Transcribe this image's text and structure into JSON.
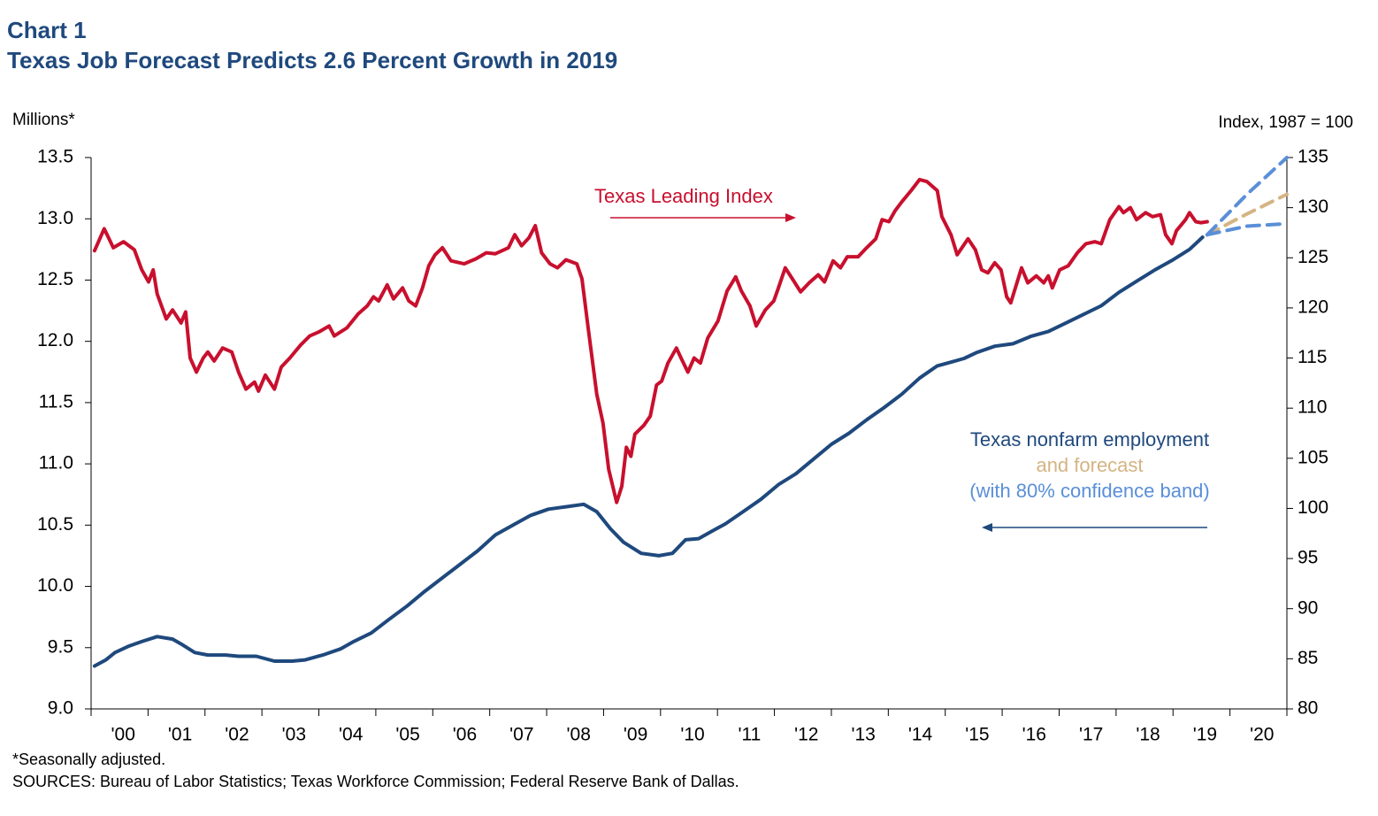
{
  "chart_data": {
    "type": "line",
    "title": "Chart 1",
    "subtitle": "Texas Job Forecast Predicts 2.6 Percent Growth in 2019",
    "y_label": "Millions*",
    "y2_label": "Index, 1987 = 100",
    "footnote": "*Seasonally adjusted.",
    "source": "SOURCES: Bureau of Labor Statistics; Texas Workforce Commission; Federal Reserve Bank of Dallas.",
    "xlim": [
      2000,
      2021
    ],
    "xticks": [
      {
        "value": 2000,
        "label": "'00"
      },
      {
        "value": 2001,
        "label": "'01"
      },
      {
        "value": 2002,
        "label": "'02"
      },
      {
        "value": 2003,
        "label": "'03"
      },
      {
        "value": 2004,
        "label": "'04"
      },
      {
        "value": 2005,
        "label": "'05"
      },
      {
        "value": 2006,
        "label": "'06"
      },
      {
        "value": 2007,
        "label": "'07"
      },
      {
        "value": 2008,
        "label": "'08"
      },
      {
        "value": 2009,
        "label": "'09"
      },
      {
        "value": 2010,
        "label": "'10"
      },
      {
        "value": 2011,
        "label": "'11"
      },
      {
        "value": 2012,
        "label": "'12"
      },
      {
        "value": 2013,
        "label": "'13"
      },
      {
        "value": 2014,
        "label": "'14"
      },
      {
        "value": 2015,
        "label": "'15"
      },
      {
        "value": 2016,
        "label": "'16"
      },
      {
        "value": 2017,
        "label": "'17"
      },
      {
        "value": 2018,
        "label": "'18"
      },
      {
        "value": 2019,
        "label": "'19"
      },
      {
        "value": 2020,
        "label": "'20"
      }
    ],
    "ylim": [
      9,
      13.5
    ],
    "yticks": [
      {
        "value": 9,
        "label": "9.0"
      },
      9.5,
      {
        "value": 10,
        "label": "10.0"
      },
      10.5,
      {
        "value": 11,
        "label": "11.0"
      },
      11.5,
      {
        "value": 12,
        "label": "12.0"
      },
      12.5,
      {
        "value": 13,
        "label": "13.0"
      },
      13.5
    ],
    "y2lim": [
      80,
      135
    ],
    "y2ticks": [
      80,
      85,
      90,
      95,
      100,
      105,
      110,
      115,
      120,
      125,
      130,
      135
    ],
    "series": [
      {
        "name": "Texas Leading Index",
        "color": "#c8102e",
        "axis": "y2",
        "x": [
          2000.06,
          2000.23,
          2000.39,
          2000.57,
          2000.76,
          2000.89,
          2001.01,
          2001.09,
          2001.16,
          2001.32,
          2001.43,
          2001.58,
          2001.66,
          2001.74,
          2001.85,
          2001.97,
          2002.05,
          2002.16,
          2002.31,
          2002.47,
          2002.59,
          2002.72,
          2002.87,
          2002.94,
          2003.06,
          2003.22,
          2003.34,
          2003.49,
          2003.68,
          2003.84,
          2004.0,
          2004.18,
          2004.27,
          2004.49,
          2004.69,
          2004.85,
          2004.96,
          2005.05,
          2005.2,
          2005.31,
          2005.47,
          2005.58,
          2005.7,
          2005.82,
          2005.93,
          2006.04,
          2006.17,
          2006.32,
          2006.55,
          2006.76,
          2006.94,
          2007.1,
          2007.33,
          2007.44,
          2007.56,
          2007.69,
          2007.8,
          2007.91,
          2008.06,
          2008.19,
          2008.34,
          2008.53,
          2008.62,
          2008.73,
          2008.88,
          2008.99,
          2009.09,
          2009.23,
          2009.32,
          2009.4,
          2009.48,
          2009.55,
          2009.71,
          2009.82,
          2009.93,
          2010.02,
          2010.13,
          2010.28,
          2010.36,
          2010.48,
          2010.59,
          2010.7,
          2010.83,
          2011.01,
          2011.17,
          2011.32,
          2011.42,
          2011.57,
          2011.68,
          2011.84,
          2011.99,
          2012.07,
          2012.19,
          2012.35,
          2012.46,
          2012.61,
          2012.77,
          2012.88,
          2013.03,
          2013.16,
          2013.28,
          2013.47,
          2013.62,
          2013.78,
          2013.89,
          2014.01,
          2014.12,
          2014.24,
          2014.4,
          2014.55,
          2014.68,
          2014.86,
          2014.94,
          2015.1,
          2015.21,
          2015.4,
          2015.53,
          2015.64,
          2015.75,
          2015.87,
          2015.98,
          2016.08,
          2016.15,
          2016.34,
          2016.45,
          2016.6,
          2016.73,
          2016.81,
          2016.88,
          2017.01,
          2017.16,
          2017.32,
          2017.47,
          2017.63,
          2017.74,
          2017.89,
          2018.05,
          2018.13,
          2018.25,
          2018.36,
          2018.52,
          2018.64,
          2018.78,
          2018.87,
          2018.98,
          2019.06,
          2019.22,
          2019.29,
          2019.4,
          2019.49,
          2019.6
        ],
        "values": [
          125.7,
          127.9,
          126.0,
          126.6,
          125.8,
          123.8,
          122.6,
          123.8,
          121.4,
          118.9,
          119.8,
          118.5,
          119.6,
          115.0,
          113.6,
          115.0,
          115.6,
          114.7,
          116.0,
          115.6,
          113.6,
          111.9,
          112.6,
          111.7,
          113.3,
          111.9,
          114.1,
          115.0,
          116.3,
          117.2,
          117.6,
          118.2,
          117.2,
          118.0,
          119.4,
          120.2,
          121.1,
          120.7,
          122.3,
          120.9,
          122.0,
          120.7,
          120.2,
          122.0,
          124.2,
          125.3,
          126.0,
          124.7,
          124.4,
          124.9,
          125.5,
          125.4,
          126.0,
          127.3,
          126.2,
          127.0,
          128.2,
          125.5,
          124.4,
          124.0,
          124.8,
          124.4,
          122.9,
          118.0,
          111.4,
          108.5,
          103.9,
          100.6,
          102.2,
          106.1,
          105.2,
          107.4,
          108.3,
          109.2,
          112.3,
          112.7,
          114.5,
          116.0,
          115.0,
          113.6,
          115.0,
          114.5,
          117.0,
          118.7,
          121.7,
          123.1,
          121.7,
          120.2,
          118.2,
          119.8,
          120.7,
          122.0,
          124.0,
          122.6,
          121.6,
          122.5,
          123.3,
          122.6,
          124.7,
          124.0,
          125.1,
          125.1,
          126.0,
          126.9,
          128.8,
          128.6,
          129.7,
          130.6,
          131.7,
          132.8,
          132.6,
          131.7,
          129.1,
          127.3,
          125.3,
          126.9,
          125.8,
          123.8,
          123.5,
          124.5,
          123.8,
          121.1,
          120.5,
          124.0,
          122.5,
          123.2,
          122.5,
          123.2,
          122.0,
          123.8,
          124.2,
          125.5,
          126.4,
          126.6,
          126.4,
          128.8,
          130.1,
          129.5,
          130.0,
          128.8,
          129.5,
          129.1,
          129.3,
          127.3,
          126.4,
          127.7,
          128.8,
          129.5,
          128.6,
          128.5,
          128.6
        ]
      },
      {
        "name": "Texas nonfarm employment",
        "color": "#1f497d",
        "axis": "y",
        "x": [
          2000.06,
          2000.26,
          2000.42,
          2000.65,
          2000.89,
          2001.16,
          2001.43,
          2001.58,
          2001.82,
          2002.05,
          2002.36,
          2002.59,
          2002.9,
          2003.22,
          2003.53,
          2003.76,
          2004.07,
          2004.38,
          2004.61,
          2004.92,
          2005.23,
          2005.55,
          2005.86,
          2006.17,
          2006.48,
          2006.79,
          2007.1,
          2007.41,
          2007.72,
          2008.03,
          2008.34,
          2008.65,
          2008.88,
          2009.12,
          2009.35,
          2009.66,
          2009.97,
          2010.21,
          2010.44,
          2010.67,
          2010.9,
          2011.14,
          2011.45,
          2011.76,
          2012.07,
          2012.38,
          2012.69,
          2013.0,
          2013.31,
          2013.62,
          2013.93,
          2014.24,
          2014.55,
          2014.86,
          2015.1,
          2015.33,
          2015.56,
          2015.87,
          2016.19,
          2016.5,
          2016.81,
          2017.12,
          2017.43,
          2017.74,
          2018.05,
          2018.36,
          2018.67,
          2018.98,
          2019.29,
          2019.52
        ],
        "values": [
          9.35,
          9.4,
          9.46,
          9.51,
          9.55,
          9.59,
          9.57,
          9.53,
          9.46,
          9.44,
          9.44,
          9.43,
          9.43,
          9.39,
          9.39,
          9.4,
          9.44,
          9.49,
          9.55,
          9.62,
          9.73,
          9.84,
          9.96,
          10.07,
          10.18,
          10.29,
          10.42,
          10.5,
          10.58,
          10.63,
          10.65,
          10.67,
          10.61,
          10.47,
          10.36,
          10.27,
          10.25,
          10.27,
          10.38,
          10.39,
          10.45,
          10.51,
          10.61,
          10.71,
          10.83,
          10.92,
          11.04,
          11.16,
          11.25,
          11.36,
          11.46,
          11.57,
          11.7,
          11.8,
          11.83,
          11.86,
          11.91,
          11.96,
          11.98,
          12.04,
          12.08,
          12.15,
          12.22,
          12.29,
          12.4,
          12.49,
          12.58,
          12.66,
          12.75,
          12.85
        ]
      },
      {
        "name": "and forecast",
        "color": "#d4b483",
        "axis": "y",
        "dashed": true,
        "x": [
          2019.6,
          2020.3,
          2021.0
        ],
        "values": [
          12.87,
          13.04,
          13.2
        ]
      }
    ],
    "band": {
      "name": "(with 80% confidence band)",
      "color": "#5a8fd8",
      "axis": "y",
      "dashed": true,
      "x": [
        2019.6,
        2020.3,
        2021.0
      ],
      "upper": [
        12.87,
        13.2,
        13.5
      ],
      "lower": [
        12.87,
        12.94,
        12.96
      ]
    }
  }
}
